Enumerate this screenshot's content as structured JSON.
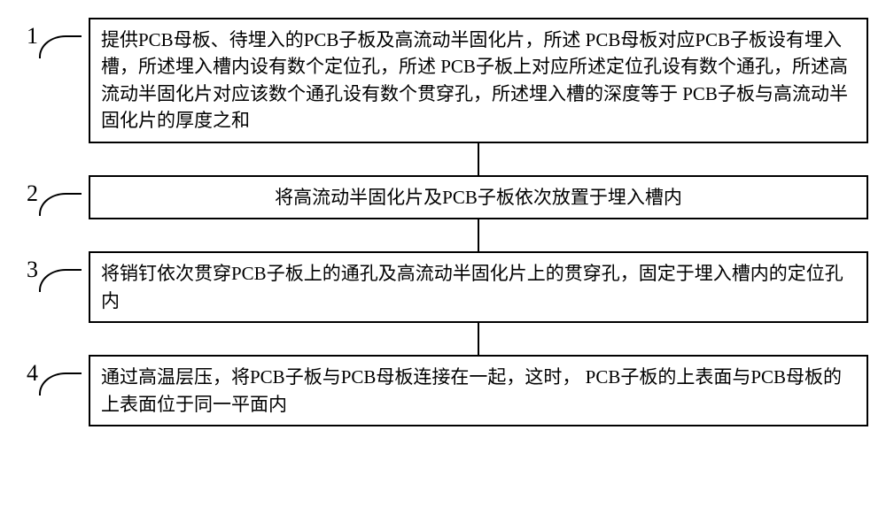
{
  "diagram": {
    "type": "flowchart",
    "background_color": "#ffffff",
    "border_color": "#000000",
    "text_color": "#000000",
    "box_border_width": 2,
    "font_size": 21,
    "number_font_size": 26,
    "connector_height": 36,
    "steps": [
      {
        "number": "1",
        "align": "left",
        "text": "提供PCB母板、待埋入的PCB子板及高流动半固化片，所述 PCB母板对应PCB子板设有埋入槽，所述埋入槽内设有数个定位孔，所述 PCB子板上对应所述定位孔设有数个通孔，所述高流动半固化片对应该数个通孔设有数个贯穿孔，所述埋入槽的深度等于 PCB子板与高流动半固化片的厚度之和"
      },
      {
        "number": "2",
        "align": "center",
        "text": "将高流动半固化片及PCB子板依次放置于埋入槽内"
      },
      {
        "number": "3",
        "align": "left",
        "text": "将销钉依次贯穿PCB子板上的通孔及高流动半固化片上的贯穿孔，固定于埋入槽内的定位孔内"
      },
      {
        "number": "4",
        "align": "left",
        "text": "通过高温层压，将PCB子板与PCB母板连接在一起，这时， PCB子板的上表面与PCB母板的上表面位于同一平面内"
      }
    ]
  }
}
